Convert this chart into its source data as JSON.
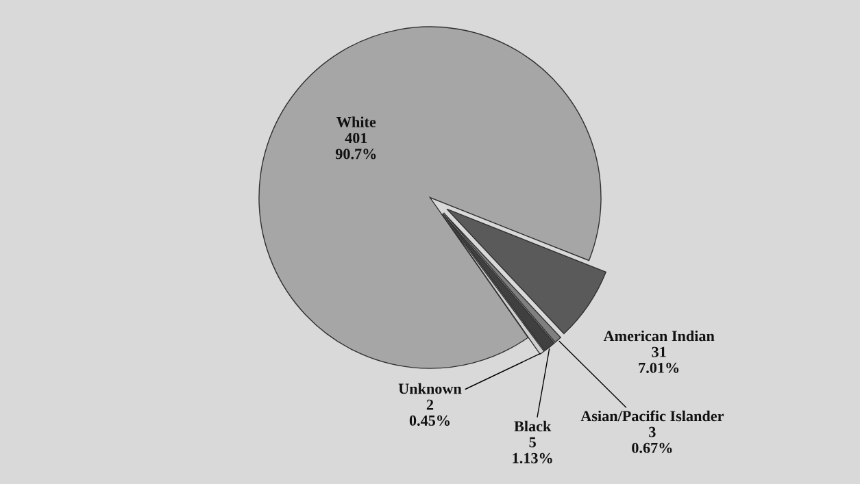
{
  "chart_data": {
    "type": "pie",
    "categories": [
      "White",
      "American Indian",
      "Asian/Pacific Islander",
      "Black",
      "Unknown"
    ],
    "values": [
      401,
      31,
      3,
      5,
      2
    ],
    "value_labels": [
      "401\n90.7%",
      "31\n7.01%",
      "3\n0.67%",
      "5\n1.13%",
      "2\n0.45%"
    ],
    "colors": [
      "#a6a6a6",
      "#5a5a5a",
      "#7f7f7f",
      "#404040",
      "#d0d0d0"
    ]
  }
}
